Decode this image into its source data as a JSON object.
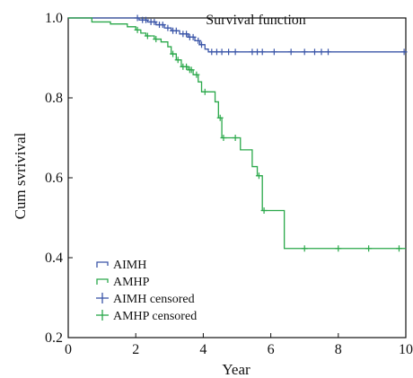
{
  "chart_data": {
    "type": "line",
    "subtype": "kaplan-meier step",
    "title": "Survival function",
    "xlabel": "Year",
    "ylabel": "Cum svrivival",
    "xlim": [
      0,
      10
    ],
    "ylim": [
      0.2,
      1.0
    ],
    "x_ticks": [
      0,
      2,
      4,
      6,
      8,
      10
    ],
    "y_ticks": [
      0.2,
      0.4,
      0.6,
      0.8,
      1.0
    ],
    "x_tick_labels": [
      "0",
      "2",
      "4",
      "6",
      "8",
      "10"
    ],
    "y_tick_labels": [
      "0.2",
      "0.4",
      "0.6",
      "0.8",
      "1.0"
    ],
    "grid": false,
    "legend_position": "bottom-left",
    "legend": [
      {
        "label": "AIMH",
        "marker": "step",
        "series": "AIMH"
      },
      {
        "label": "AMHP",
        "marker": "step",
        "series": "AMHP"
      },
      {
        "label": "AIMH censored",
        "marker": "plus",
        "series": "AIMH"
      },
      {
        "label": "AMHP censored",
        "marker": "plus",
        "series": "AMHP"
      }
    ],
    "series": [
      {
        "name": "AIMH",
        "color": "#3a55a8",
        "steps": [
          [
            0,
            1.0
          ],
          [
            2.1,
            0.995
          ],
          [
            2.35,
            0.99
          ],
          [
            2.6,
            0.983
          ],
          [
            2.85,
            0.975
          ],
          [
            3.05,
            0.968
          ],
          [
            3.3,
            0.96
          ],
          [
            3.55,
            0.952
          ],
          [
            3.75,
            0.943
          ],
          [
            3.9,
            0.933
          ],
          [
            4.05,
            0.922
          ],
          [
            4.15,
            0.915
          ],
          [
            10,
            0.915
          ]
        ],
        "censored": [
          [
            2.05,
            1.0
          ],
          [
            2.2,
            0.995
          ],
          [
            2.3,
            0.995
          ],
          [
            2.45,
            0.99
          ],
          [
            2.55,
            0.99
          ],
          [
            2.7,
            0.983
          ],
          [
            2.8,
            0.983
          ],
          [
            2.95,
            0.975
          ],
          [
            3.1,
            0.968
          ],
          [
            3.2,
            0.968
          ],
          [
            3.4,
            0.96
          ],
          [
            3.5,
            0.96
          ],
          [
            3.6,
            0.952
          ],
          [
            3.7,
            0.952
          ],
          [
            3.85,
            0.943
          ],
          [
            3.95,
            0.933
          ],
          [
            4.25,
            0.915
          ],
          [
            4.4,
            0.915
          ],
          [
            4.55,
            0.915
          ],
          [
            4.75,
            0.915
          ],
          [
            4.95,
            0.915
          ],
          [
            5.45,
            0.915
          ],
          [
            5.6,
            0.915
          ],
          [
            5.75,
            0.915
          ],
          [
            6.1,
            0.915
          ],
          [
            6.6,
            0.915
          ],
          [
            7.0,
            0.915
          ],
          [
            7.3,
            0.915
          ],
          [
            7.5,
            0.915
          ],
          [
            7.7,
            0.915
          ],
          [
            9.95,
            0.915
          ]
        ]
      },
      {
        "name": "AMHP",
        "color": "#2aa84a",
        "steps": [
          [
            0,
            1.0
          ],
          [
            0.7,
            0.99
          ],
          [
            1.25,
            0.985
          ],
          [
            1.75,
            0.978
          ],
          [
            2.0,
            0.97
          ],
          [
            2.15,
            0.962
          ],
          [
            2.3,
            0.955
          ],
          [
            2.55,
            0.947
          ],
          [
            2.75,
            0.94
          ],
          [
            2.95,
            0.928
          ],
          [
            3.05,
            0.91
          ],
          [
            3.2,
            0.895
          ],
          [
            3.35,
            0.878
          ],
          [
            3.55,
            0.87
          ],
          [
            3.7,
            0.858
          ],
          [
            3.85,
            0.84
          ],
          [
            3.95,
            0.815
          ],
          [
            4.35,
            0.79
          ],
          [
            4.45,
            0.75
          ],
          [
            4.55,
            0.7
          ],
          [
            5.1,
            0.67
          ],
          [
            5.45,
            0.628
          ],
          [
            5.6,
            0.605
          ],
          [
            5.75,
            0.518
          ],
          [
            6.4,
            0.423
          ],
          [
            10,
            0.423
          ]
        ],
        "censored": [
          [
            2.05,
            0.97
          ],
          [
            2.35,
            0.955
          ],
          [
            2.6,
            0.947
          ],
          [
            3.1,
            0.91
          ],
          [
            3.25,
            0.895
          ],
          [
            3.4,
            0.878
          ],
          [
            3.5,
            0.878
          ],
          [
            3.6,
            0.87
          ],
          [
            3.65,
            0.87
          ],
          [
            3.8,
            0.858
          ],
          [
            4.05,
            0.815
          ],
          [
            4.5,
            0.75
          ],
          [
            4.6,
            0.7
          ],
          [
            4.95,
            0.7
          ],
          [
            5.65,
            0.605
          ],
          [
            5.8,
            0.518
          ],
          [
            7.0,
            0.423
          ],
          [
            8.0,
            0.423
          ],
          [
            8.9,
            0.423
          ],
          [
            9.8,
            0.423
          ]
        ]
      }
    ]
  }
}
